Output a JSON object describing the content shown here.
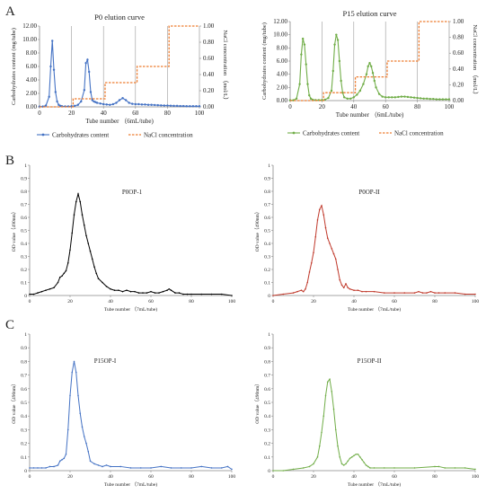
{
  "panels": [
    {
      "letter": "A"
    },
    {
      "letter": "B"
    },
    {
      "letter": "C"
    }
  ],
  "chart_data": [
    {
      "type": "line",
      "title": "P0 elution curve",
      "xlabel": "Tube number （6mL/tube)",
      "ylabel": "Carbohydrates content (mg/tube)",
      "y2label": "NaCl concentration （mol/L）",
      "xlim": [
        0,
        100
      ],
      "ylim": [
        0,
        12
      ],
      "y2lim": [
        0,
        1
      ],
      "xticks": [
        "0",
        "20",
        "40",
        "60",
        "80",
        "100"
      ],
      "yticks": [
        "0.00",
        "2.00",
        "4.00",
        "6.00",
        "8.00",
        "10.00",
        "12.00"
      ],
      "y2ticks": [
        "0.00",
        "0.20",
        "0.40",
        "0.60",
        "0.80",
        "1.00"
      ],
      "vlines": [
        20,
        40,
        60,
        80
      ],
      "legend": [
        "Carbohydrates content",
        "NaCl concentration"
      ],
      "legend_position": "bottom",
      "colors": {
        "carb": "#4472c4",
        "nacl": "#ed7d31"
      },
      "series": [
        {
          "name": "Carbohydrates content",
          "axis": "left",
          "x": [
            0,
            2,
            4,
            6,
            7,
            8,
            9,
            10,
            11,
            12,
            13,
            14,
            16,
            18,
            20,
            22,
            24,
            26,
            28,
            29,
            30,
            31,
            32,
            33,
            34,
            35,
            36,
            38,
            40,
            42,
            44,
            46,
            48,
            50,
            52,
            54,
            56,
            58,
            60,
            62,
            64,
            66,
            68,
            70,
            72,
            74,
            76,
            78,
            80,
            82,
            84,
            86,
            88,
            90,
            92,
            94,
            96,
            98,
            100
          ],
          "y": [
            0.05,
            0.05,
            0.2,
            1.5,
            6.0,
            9.8,
            5.5,
            2.2,
            0.8,
            0.3,
            0.15,
            0.1,
            0.08,
            0.08,
            0.1,
            0.15,
            0.3,
            0.8,
            2.5,
            6.5,
            7.0,
            5.2,
            2.2,
            1.0,
            0.8,
            0.7,
            0.6,
            0.5,
            0.4,
            0.35,
            0.3,
            0.4,
            0.6,
            1.0,
            1.3,
            1.0,
            0.6,
            0.45,
            0.4,
            0.4,
            0.35,
            0.35,
            0.3,
            0.3,
            0.28,
            0.25,
            0.22,
            0.2,
            0.2,
            0.18,
            0.15,
            0.15,
            0.12,
            0.12,
            0.1,
            0.1,
            0.1,
            0.1,
            0.1
          ]
        },
        {
          "name": "NaCl concentration",
          "axis": "right",
          "step": true,
          "x": [
            0,
            21,
            21,
            41,
            41,
            61,
            61,
            81,
            81,
            100
          ],
          "y": [
            0,
            0,
            0.1,
            0.1,
            0.3,
            0.3,
            0.5,
            0.5,
            1.0,
            1.0
          ]
        }
      ]
    },
    {
      "type": "line",
      "title": "P15 elution curve",
      "xlabel": "Tube number （6mL/tube)",
      "ylabel": "Carbohydrates content (mg/tube)",
      "y2label": "NaCl concentration （mol/L）",
      "xlim": [
        0,
        100
      ],
      "ylim": [
        0,
        12
      ],
      "y2lim": [
        0,
        1
      ],
      "xticks": [
        "0",
        "20",
        "40",
        "60",
        "80",
        "100"
      ],
      "yticks": [
        "0.00",
        "2.00",
        "4.00",
        "6.00",
        "8.00",
        "10.00",
        "12.00"
      ],
      "y2ticks": [
        "0.00",
        "0.20",
        "0.40",
        "0.60",
        "0.80",
        "1.00"
      ],
      "vlines": [
        20,
        40,
        60,
        80
      ],
      "legend": [
        "Carbohydrates content",
        "NaCl concentration"
      ],
      "legend_position": "bottom",
      "colors": {
        "carb": "#70ad47",
        "nacl": "#ed7d31"
      },
      "series": [
        {
          "name": "Carbohydrates content",
          "axis": "left",
          "x": [
            0,
            2,
            4,
            6,
            7,
            8,
            9,
            10,
            11,
            12,
            13,
            14,
            16,
            18,
            20,
            22,
            24,
            26,
            27,
            28,
            29,
            30,
            31,
            32,
            33,
            34,
            36,
            38,
            40,
            42,
            44,
            46,
            48,
            49,
            50,
            51,
            52,
            53,
            54,
            56,
            58,
            60,
            62,
            64,
            66,
            68,
            70,
            72,
            74,
            76,
            78,
            80,
            82,
            84,
            86,
            88,
            90,
            92,
            94,
            96,
            98,
            100
          ],
          "y": [
            0.05,
            0.05,
            0.3,
            2.5,
            7.0,
            9.4,
            8.5,
            5.5,
            2.5,
            0.8,
            0.3,
            0.15,
            0.08,
            0.08,
            0.1,
            0.15,
            0.4,
            1.5,
            4.5,
            8.5,
            10.0,
            9.2,
            6.0,
            3.0,
            1.2,
            0.5,
            0.3,
            0.3,
            0.5,
            0.9,
            1.5,
            2.5,
            4.0,
            5.2,
            5.7,
            5.2,
            4.2,
            3.0,
            2.0,
            1.0,
            0.6,
            0.5,
            0.5,
            0.5,
            0.5,
            0.55,
            0.6,
            0.6,
            0.55,
            0.5,
            0.45,
            0.4,
            0.35,
            0.3,
            0.3,
            0.25,
            0.25,
            0.2,
            0.2,
            0.2,
            0.2,
            0.2
          ]
        },
        {
          "name": "NaCl concentration",
          "axis": "right",
          "step": true,
          "x": [
            0,
            21,
            21,
            41,
            41,
            61,
            61,
            81,
            81,
            100
          ],
          "y": [
            0,
            0,
            0.1,
            0.1,
            0.3,
            0.3,
            0.5,
            0.5,
            1.0,
            1.0
          ]
        }
      ]
    },
    {
      "type": "line",
      "title": "P0OP-1",
      "xlabel": "Tube number （7mL/tube)",
      "ylabel": "OD value（490nm）",
      "xlim": [
        0,
        100
      ],
      "ylim": [
        0,
        1
      ],
      "xticks": [
        "0",
        "20",
        "40",
        "60",
        "80",
        "100"
      ],
      "yticks": [
        "0",
        "0.1",
        "0.2",
        "0.3",
        "0.4",
        "0.5",
        "0.6",
        "0.7",
        "0.8",
        "0.9",
        "1"
      ],
      "color": "#000000",
      "series": [
        {
          "x": [
            0,
            2,
            4,
            6,
            8,
            10,
            12,
            14,
            15,
            16,
            17,
            18,
            19,
            20,
            21,
            22,
            23,
            24,
            25,
            26,
            27,
            28,
            29,
            30,
            31,
            32,
            33,
            34,
            36,
            38,
            40,
            42,
            44,
            46,
            48,
            50,
            52,
            54,
            56,
            58,
            60,
            62,
            64,
            66,
            68,
            69,
            70,
            72,
            74,
            76,
            78,
            80,
            85,
            90,
            95,
            100
          ],
          "y": [
            0.01,
            0.01,
            0.02,
            0.03,
            0.04,
            0.05,
            0.06,
            0.1,
            0.14,
            0.15,
            0.17,
            0.19,
            0.25,
            0.35,
            0.48,
            0.62,
            0.72,
            0.78,
            0.72,
            0.62,
            0.54,
            0.46,
            0.4,
            0.34,
            0.28,
            0.22,
            0.17,
            0.13,
            0.1,
            0.07,
            0.05,
            0.04,
            0.04,
            0.03,
            0.04,
            0.03,
            0.03,
            0.02,
            0.02,
            0.02,
            0.03,
            0.02,
            0.02,
            0.03,
            0.04,
            0.05,
            0.04,
            0.02,
            0.02,
            0.01,
            0.01,
            0.01,
            0.01,
            0.01,
            0.01,
            0.0
          ]
        }
      ]
    },
    {
      "type": "line",
      "title": "P0OP-II",
      "xlabel": "Tube number （7mL/tube)",
      "ylabel": "OD value（490nm）",
      "xlim": [
        0,
        100
      ],
      "ylim": [
        0,
        1
      ],
      "xticks": [
        "0",
        "20",
        "40",
        "60",
        "80",
        "100"
      ],
      "yticks": [
        "0",
        "0.1",
        "0.2",
        "0.3",
        "0.4",
        "0.5",
        "0.6",
        "0.7",
        "0.8",
        "0.9",
        "1"
      ],
      "color": "#c0392b",
      "series": [
        {
          "x": [
            0,
            5,
            10,
            12,
            14,
            15,
            16,
            17,
            18,
            19,
            20,
            21,
            22,
            23,
            24,
            25,
            26,
            27,
            28,
            29,
            30,
            31,
            32,
            33,
            34,
            35,
            36,
            37,
            38,
            40,
            42,
            44,
            46,
            50,
            55,
            60,
            65,
            70,
            72,
            74,
            76,
            78,
            80,
            82,
            85,
            90,
            95,
            100
          ],
          "y": [
            0.0,
            0.01,
            0.02,
            0.03,
            0.04,
            0.03,
            0.05,
            0.1,
            0.18,
            0.25,
            0.33,
            0.45,
            0.58,
            0.66,
            0.69,
            0.62,
            0.52,
            0.44,
            0.4,
            0.36,
            0.32,
            0.28,
            0.2,
            0.12,
            0.08,
            0.06,
            0.09,
            0.06,
            0.05,
            0.04,
            0.04,
            0.03,
            0.03,
            0.03,
            0.02,
            0.02,
            0.02,
            0.02,
            0.03,
            0.02,
            0.02,
            0.03,
            0.02,
            0.02,
            0.02,
            0.02,
            0.01,
            0.01
          ]
        }
      ]
    },
    {
      "type": "line",
      "title": "P15OP-I",
      "xlabel": "Tube number （7mL/tube)",
      "ylabel": "OD value（490nm）",
      "xlim": [
        0,
        100
      ],
      "ylim": [
        0,
        1
      ],
      "xticks": [
        "0",
        "20",
        "40",
        "60",
        "80",
        "100"
      ],
      "yticks": [
        "0",
        "0.1",
        "0.2",
        "0.3",
        "0.4",
        "0.5",
        "0.6",
        "0.7",
        "0.8",
        "0.9",
        "1"
      ],
      "color": "#4472c4",
      "series": [
        {
          "x": [
            0,
            2,
            4,
            6,
            8,
            10,
            12,
            14,
            15,
            16,
            17,
            18,
            19,
            20,
            21,
            22,
            23,
            24,
            25,
            26,
            27,
            28,
            29,
            30,
            32,
            34,
            36,
            38,
            40,
            45,
            50,
            55,
            60,
            65,
            70,
            75,
            80,
            85,
            90,
            95,
            98,
            100
          ],
          "y": [
            0.02,
            0.02,
            0.02,
            0.02,
            0.02,
            0.03,
            0.03,
            0.04,
            0.07,
            0.08,
            0.09,
            0.12,
            0.3,
            0.55,
            0.72,
            0.8,
            0.72,
            0.55,
            0.42,
            0.32,
            0.25,
            0.2,
            0.14,
            0.07,
            0.05,
            0.04,
            0.03,
            0.04,
            0.03,
            0.03,
            0.02,
            0.02,
            0.02,
            0.03,
            0.02,
            0.02,
            0.02,
            0.03,
            0.02,
            0.02,
            0.03,
            0.01
          ]
        }
      ]
    },
    {
      "type": "line",
      "title": "P15OP-II",
      "xlabel": "Tube number （7mL/tube)",
      "ylabel": "OD value（490nm）",
      "xlim": [
        0,
        100
      ],
      "ylim": [
        0,
        1
      ],
      "xticks": [
        "0",
        "20",
        "40",
        "60",
        "80",
        "100"
      ],
      "yticks": [
        "0",
        "0.1",
        "0.2",
        "0.3",
        "0.4",
        "0.5",
        "0.6",
        "0.7",
        "0.8",
        "0.9",
        "1"
      ],
      "color": "#70ad47",
      "series": [
        {
          "x": [
            0,
            5,
            10,
            15,
            18,
            20,
            22,
            23,
            24,
            25,
            26,
            27,
            28,
            29,
            30,
            31,
            32,
            33,
            34,
            35,
            36,
            37,
            38,
            39,
            40,
            41,
            42,
            43,
            44,
            45,
            46,
            47,
            48,
            50,
            55,
            60,
            70,
            80,
            82,
            85,
            90,
            95,
            100
          ],
          "y": [
            0.0,
            0.0,
            0.01,
            0.02,
            0.03,
            0.05,
            0.1,
            0.18,
            0.28,
            0.4,
            0.55,
            0.65,
            0.67,
            0.58,
            0.45,
            0.3,
            0.18,
            0.1,
            0.05,
            0.04,
            0.05,
            0.07,
            0.09,
            0.1,
            0.11,
            0.12,
            0.12,
            0.1,
            0.08,
            0.06,
            0.04,
            0.03,
            0.02,
            0.02,
            0.02,
            0.02,
            0.02,
            0.03,
            0.03,
            0.02,
            0.02,
            0.02,
            0.01
          ]
        }
      ]
    }
  ]
}
